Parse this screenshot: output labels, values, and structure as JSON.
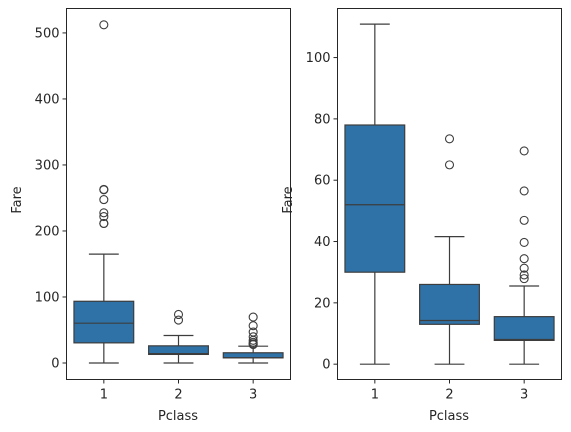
{
  "chart_data": [
    {
      "type": "box",
      "xlabel": "Pclass",
      "ylabel": "Fare",
      "ylim": [
        -25,
        537
      ],
      "yticks": [
        0,
        100,
        200,
        300,
        400,
        500
      ],
      "ytick_labels": [
        "0",
        "100",
        "200",
        "300",
        "400",
        "500"
      ],
      "categories": [
        "1",
        "2",
        "3"
      ],
      "box_color": "#2f72a8",
      "line_color": "#3d3d3d",
      "boxes": [
        {
          "category": "1",
          "whisker_low": 0,
          "q1": 30.5,
          "median": 60.3,
          "q3": 93.5,
          "whisker_high": 164.9,
          "outliers": [
            211.3,
            211.5,
            221.8,
            227.5,
            247.5,
            262.4,
            263.0,
            512.3
          ]
        },
        {
          "category": "2",
          "whisker_low": 0,
          "q1": 13.0,
          "median": 14.25,
          "q3": 26.0,
          "whisker_high": 41.6,
          "outliers": [
            65.0,
            73.5
          ]
        },
        {
          "category": "3",
          "whisker_low": 0,
          "q1": 7.75,
          "median": 8.05,
          "q3": 15.5,
          "whisker_high": 25.5,
          "outliers": [
            27.9,
            29.1,
            31.3,
            34.4,
            39.7,
            46.9,
            56.5,
            69.55
          ]
        }
      ]
    },
    {
      "type": "box",
      "xlabel": "Pclass",
      "ylabel": "Fare",
      "ylim": [
        -5,
        116
      ],
      "yticks": [
        0,
        20,
        40,
        60,
        80,
        100
      ],
      "ytick_labels": [
        "0",
        "20",
        "40",
        "60",
        "80",
        "100"
      ],
      "categories": [
        "1",
        "2",
        "3"
      ],
      "box_color": "#2f72a8",
      "line_color": "#3d3d3d",
      "boxes": [
        {
          "category": "1",
          "whisker_low": 0,
          "q1": 30.0,
          "median": 52.0,
          "q3": 78.0,
          "whisker_high": 110.9,
          "outliers": []
        },
        {
          "category": "2",
          "whisker_low": 0,
          "q1": 13.0,
          "median": 14.25,
          "q3": 26.0,
          "whisker_high": 41.6,
          "outliers": [
            65.0,
            73.5
          ]
        },
        {
          "category": "3",
          "whisker_low": 0,
          "q1": 7.75,
          "median": 8.05,
          "q3": 15.5,
          "whisker_high": 25.5,
          "outliers": [
            27.9,
            29.1,
            31.3,
            34.4,
            39.7,
            46.9,
            56.5,
            69.55
          ]
        }
      ]
    }
  ]
}
